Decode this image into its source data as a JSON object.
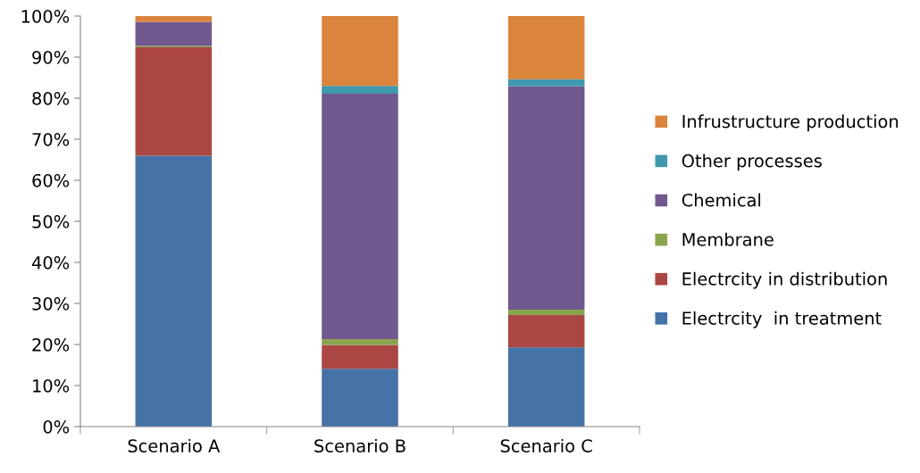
{
  "chart_data": {
    "type": "bar",
    "stacked": true,
    "categories": [
      "Scenario A",
      "Scenario B",
      "Scenario C"
    ],
    "series": [
      {
        "name": "Electrcity  in treatment",
        "color": "#4572a7",
        "values": [
          66,
          14.1,
          19.3
        ]
      },
      {
        "name": "Electrcity in distribution",
        "color": "#aa4643",
        "values": [
          26.4,
          5.8,
          7.9
        ]
      },
      {
        "name": "Membrane",
        "color": "#89a54e",
        "values": [
          0.3,
          1.4,
          1.3
        ]
      },
      {
        "name": "Chemical",
        "color": "#71588f",
        "values": [
          5.9,
          59.8,
          54.4
        ]
      },
      {
        "name": "Other processes",
        "color": "#4198af",
        "values": [
          0,
          1.9,
          1.7
        ]
      },
      {
        "name": "Infrustructure production",
        "color": "#db843d",
        "values": [
          1.7,
          17,
          15.4
        ]
      }
    ],
    "ylim": [
      0,
      100
    ],
    "yticks": [
      {
        "value": 0,
        "label": "0%"
      },
      {
        "value": 10,
        "label": "10%"
      },
      {
        "value": 20,
        "label": "20%"
      },
      {
        "value": 30,
        "label": "30%"
      },
      {
        "value": 40,
        "label": "40%"
      },
      {
        "value": 50,
        "label": "50%"
      },
      {
        "value": 60,
        "label": "60%"
      },
      {
        "value": 70,
        "label": "70%"
      },
      {
        "value": 80,
        "label": "80%"
      },
      {
        "value": 90,
        "label": "90%"
      },
      {
        "value": 100,
        "label": "100%"
      }
    ],
    "grid": false,
    "legend": "right"
  }
}
